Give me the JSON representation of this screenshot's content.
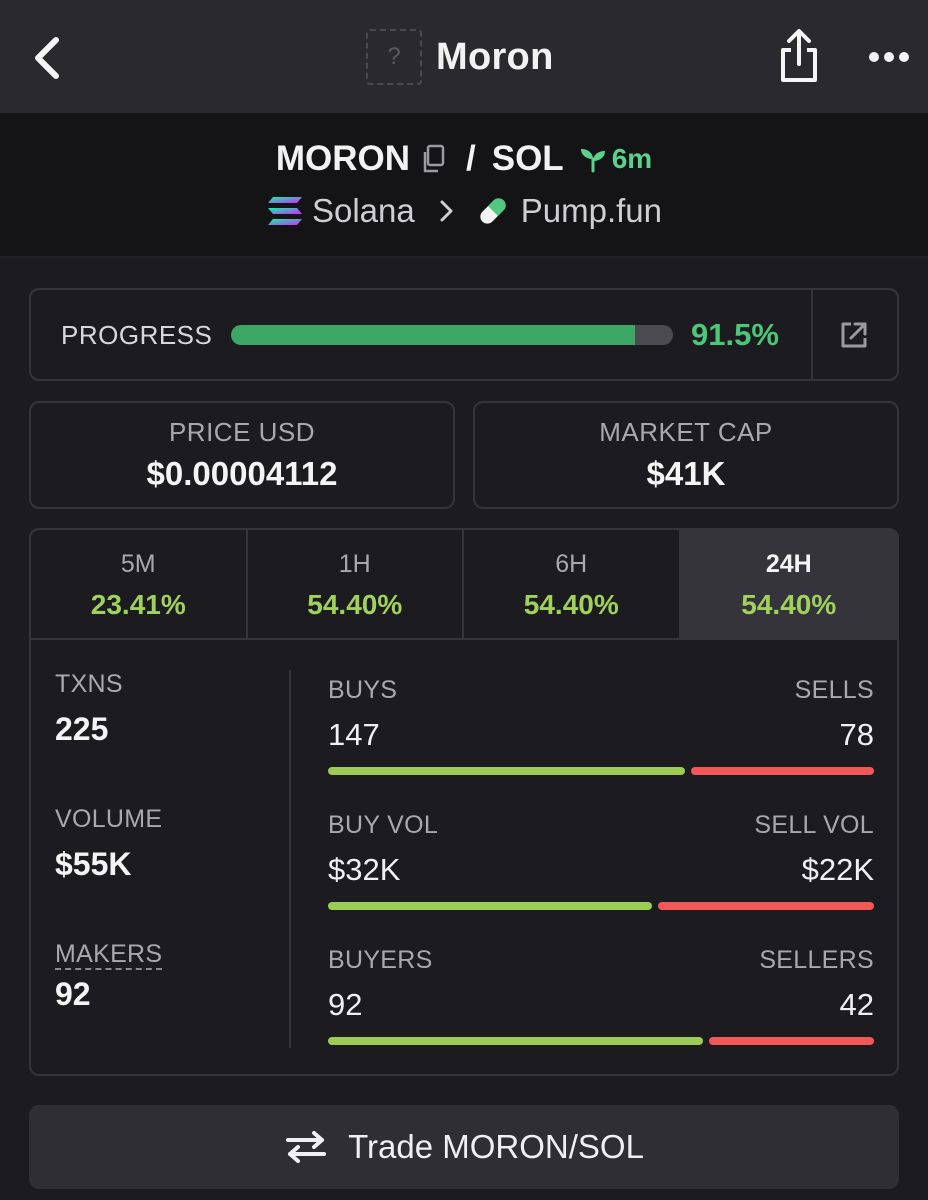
{
  "navbar": {
    "title": "Moron",
    "avatar_placeholder": "?",
    "icons": {
      "back": "chevron-left-icon",
      "share": "share-icon",
      "more": "more-horizontal-icon"
    }
  },
  "pair": {
    "base": "MORON",
    "separator": "/",
    "quote": "SOL",
    "age": "6m",
    "chain": "Solana",
    "dex": "Pump.fun",
    "icons": {
      "copy": "copy-icon",
      "age": "sprout-icon",
      "chain": "solana-icon",
      "dex": "pill-icon"
    }
  },
  "progress": {
    "label": "PROGRESS",
    "value_text": "91.5%",
    "fraction": 0.915,
    "icon": "external-link-icon"
  },
  "price": {
    "label": "PRICE USD",
    "value": "$0.00004112"
  },
  "market_cap": {
    "label": "MARKET CAP",
    "value": "$41K"
  },
  "timeframes": [
    {
      "label": "5M",
      "change": "23.41%",
      "active": false
    },
    {
      "label": "1H",
      "change": "54.40%",
      "active": false
    },
    {
      "label": "6H",
      "change": "54.40%",
      "active": false
    },
    {
      "label": "24H",
      "change": "54.40%",
      "active": true
    }
  ],
  "metrics": {
    "txns": {
      "label": "TXNS",
      "value": "225"
    },
    "volume": {
      "label": "VOLUME",
      "value": "$55K"
    },
    "makers": {
      "label": "MAKERS",
      "value": "92"
    }
  },
  "splits": {
    "trades": {
      "left_label": "BUYS",
      "right_label": "SELLS",
      "left_value": "147",
      "right_value": "78",
      "buy_fraction": 0.653
    },
    "volume": {
      "left_label": "BUY VOL",
      "right_label": "SELL VOL",
      "left_value": "$32K",
      "right_value": "$22K",
      "buy_fraction": 0.593
    },
    "makers": {
      "left_label": "BUYERS",
      "right_label": "SELLERS",
      "left_value": "92",
      "right_value": "42",
      "buy_fraction": 0.687
    }
  },
  "trade_button": {
    "label": "Trade MORON/SOL",
    "icon": "swap-arrows-icon"
  },
  "colors": {
    "background": "#1c1c20",
    "navbar": "#2a2a2e",
    "positive": "#9fd15c",
    "progress_green": "#3da865",
    "sell_red": "#f25858",
    "age_green": "#5ed08a"
  }
}
